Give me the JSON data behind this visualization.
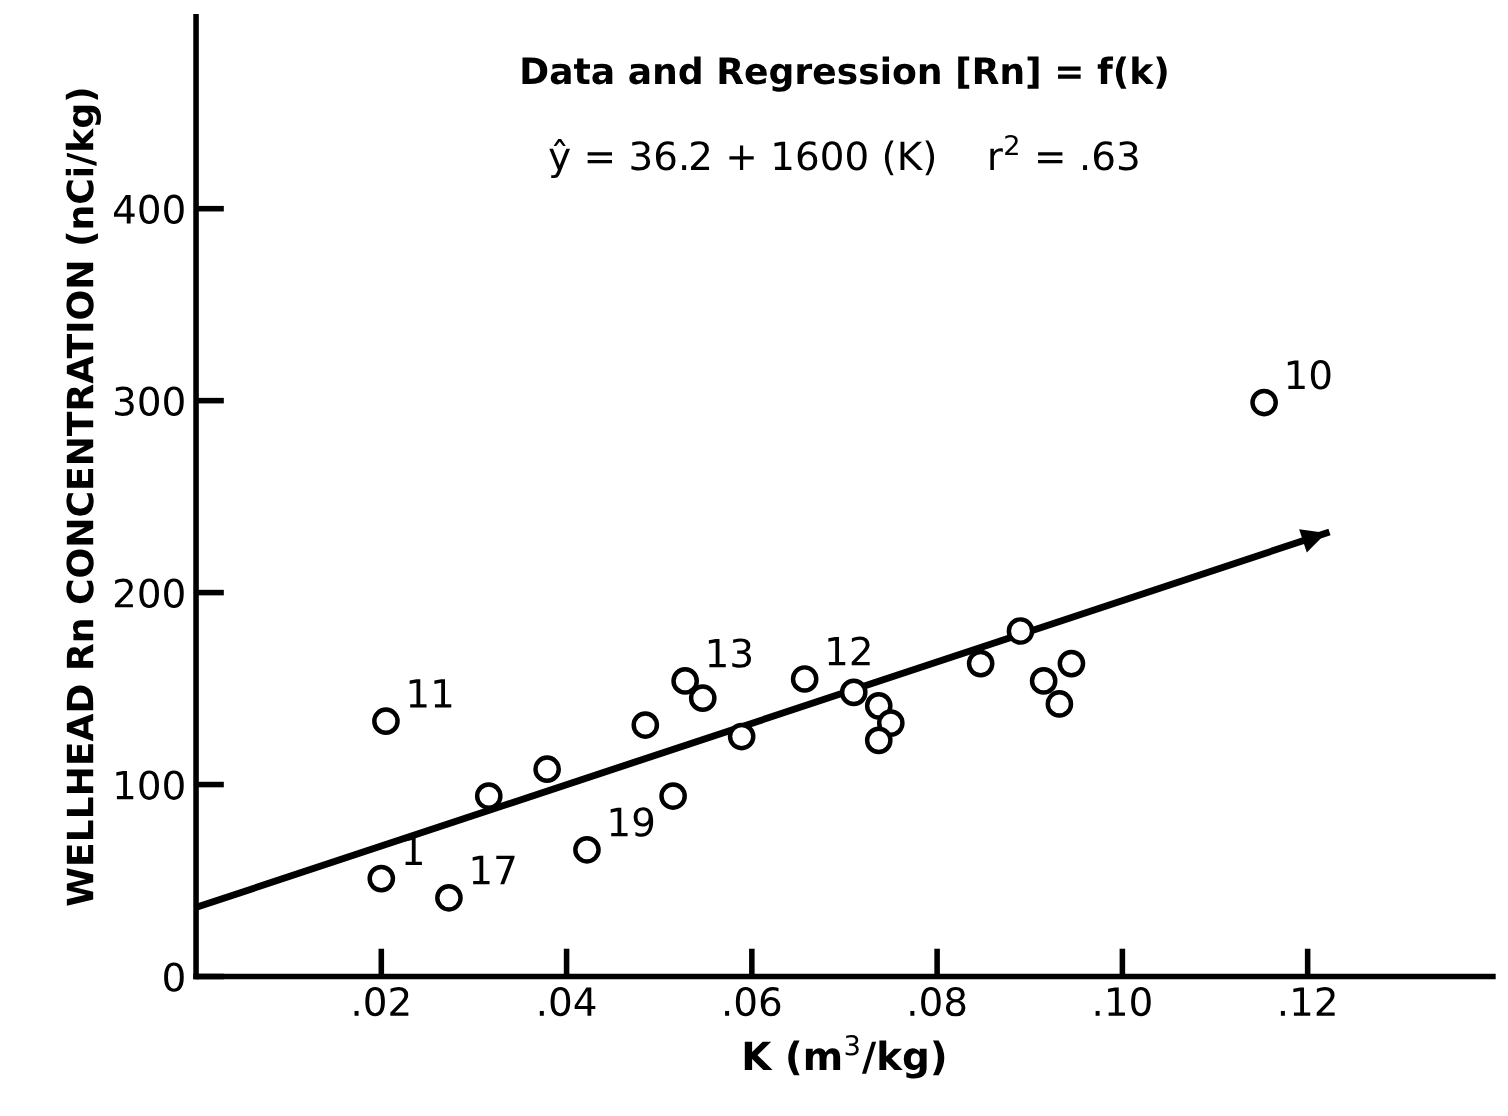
{
  "chart_data": {
    "type": "scatter",
    "title": "Data and Regression [Rn] = f(k)",
    "subtitle": "ŷ = 36.2 + 1600 (K)    r$^{2}$ = .63",
    "xlabel": "K (m$^{3}$/kg)",
    "ylabel": "WELLHEAD Rn CONCENTRATION (nCi/kg)",
    "series": [
      {
        "color": "#000000",
        "marker": "circle",
        "x": [
          0.02,
          0.0205,
          0.0273,
          0.0316,
          0.0379,
          0.0422,
          0.0485,
          0.0515,
          0.0528,
          0.0547,
          0.0589,
          0.0657,
          0.071,
          0.0737,
          0.075,
          0.0737,
          0.0847,
          0.089,
          0.0915,
          0.0945,
          0.0932,
          0.1153
        ],
        "values": [
          51,
          133,
          41,
          94,
          108,
          66,
          131,
          94,
          154,
          145,
          125,
          155,
          148,
          141,
          132,
          123,
          163,
          180,
          154,
          163,
          142,
          299
        ]
      },
      {
        "type": "line",
        "color": "#000000",
        "marker": "none",
        "line_style": "solid",
        "x": [
          0,
          0.122
        ],
        "values": [
          36,
          231
        ]
      }
    ],
    "annotations": [
      {
        "text": "1",
        "x": 0.02,
        "y": 51
      },
      {
        "text": "11",
        "x": 0.0205,
        "y": 133
      },
      {
        "text": "17",
        "x": 0.0273,
        "y": 41
      },
      {
        "text": "19",
        "x": 0.0422,
        "y": 66
      },
      {
        "text": "13",
        "x": 0.0528,
        "y": 154
      },
      {
        "text": "12",
        "x": 0.0657,
        "y": 155
      },
      {
        "text": "10",
        "x": 0.1153,
        "y": 299
      }
    ],
    "xlim": [
      0,
      0.14
    ],
    "ylim": [
      0,
      500
    ],
    "xticks": [
      {
        "value": 0.02,
        "label": ".02"
      },
      {
        "value": 0.04,
        "label": ".04"
      },
      {
        "value": 0.06,
        "label": ".06"
      },
      {
        "value": 0.08,
        "label": ".08"
      },
      {
        "value": 0.1,
        "label": ".10"
      },
      {
        "value": 0.12,
        "label": ".12"
      }
    ],
    "yticks": [
      0,
      100,
      200,
      300,
      400
    ],
    "grid": false,
    "legend": false
  }
}
